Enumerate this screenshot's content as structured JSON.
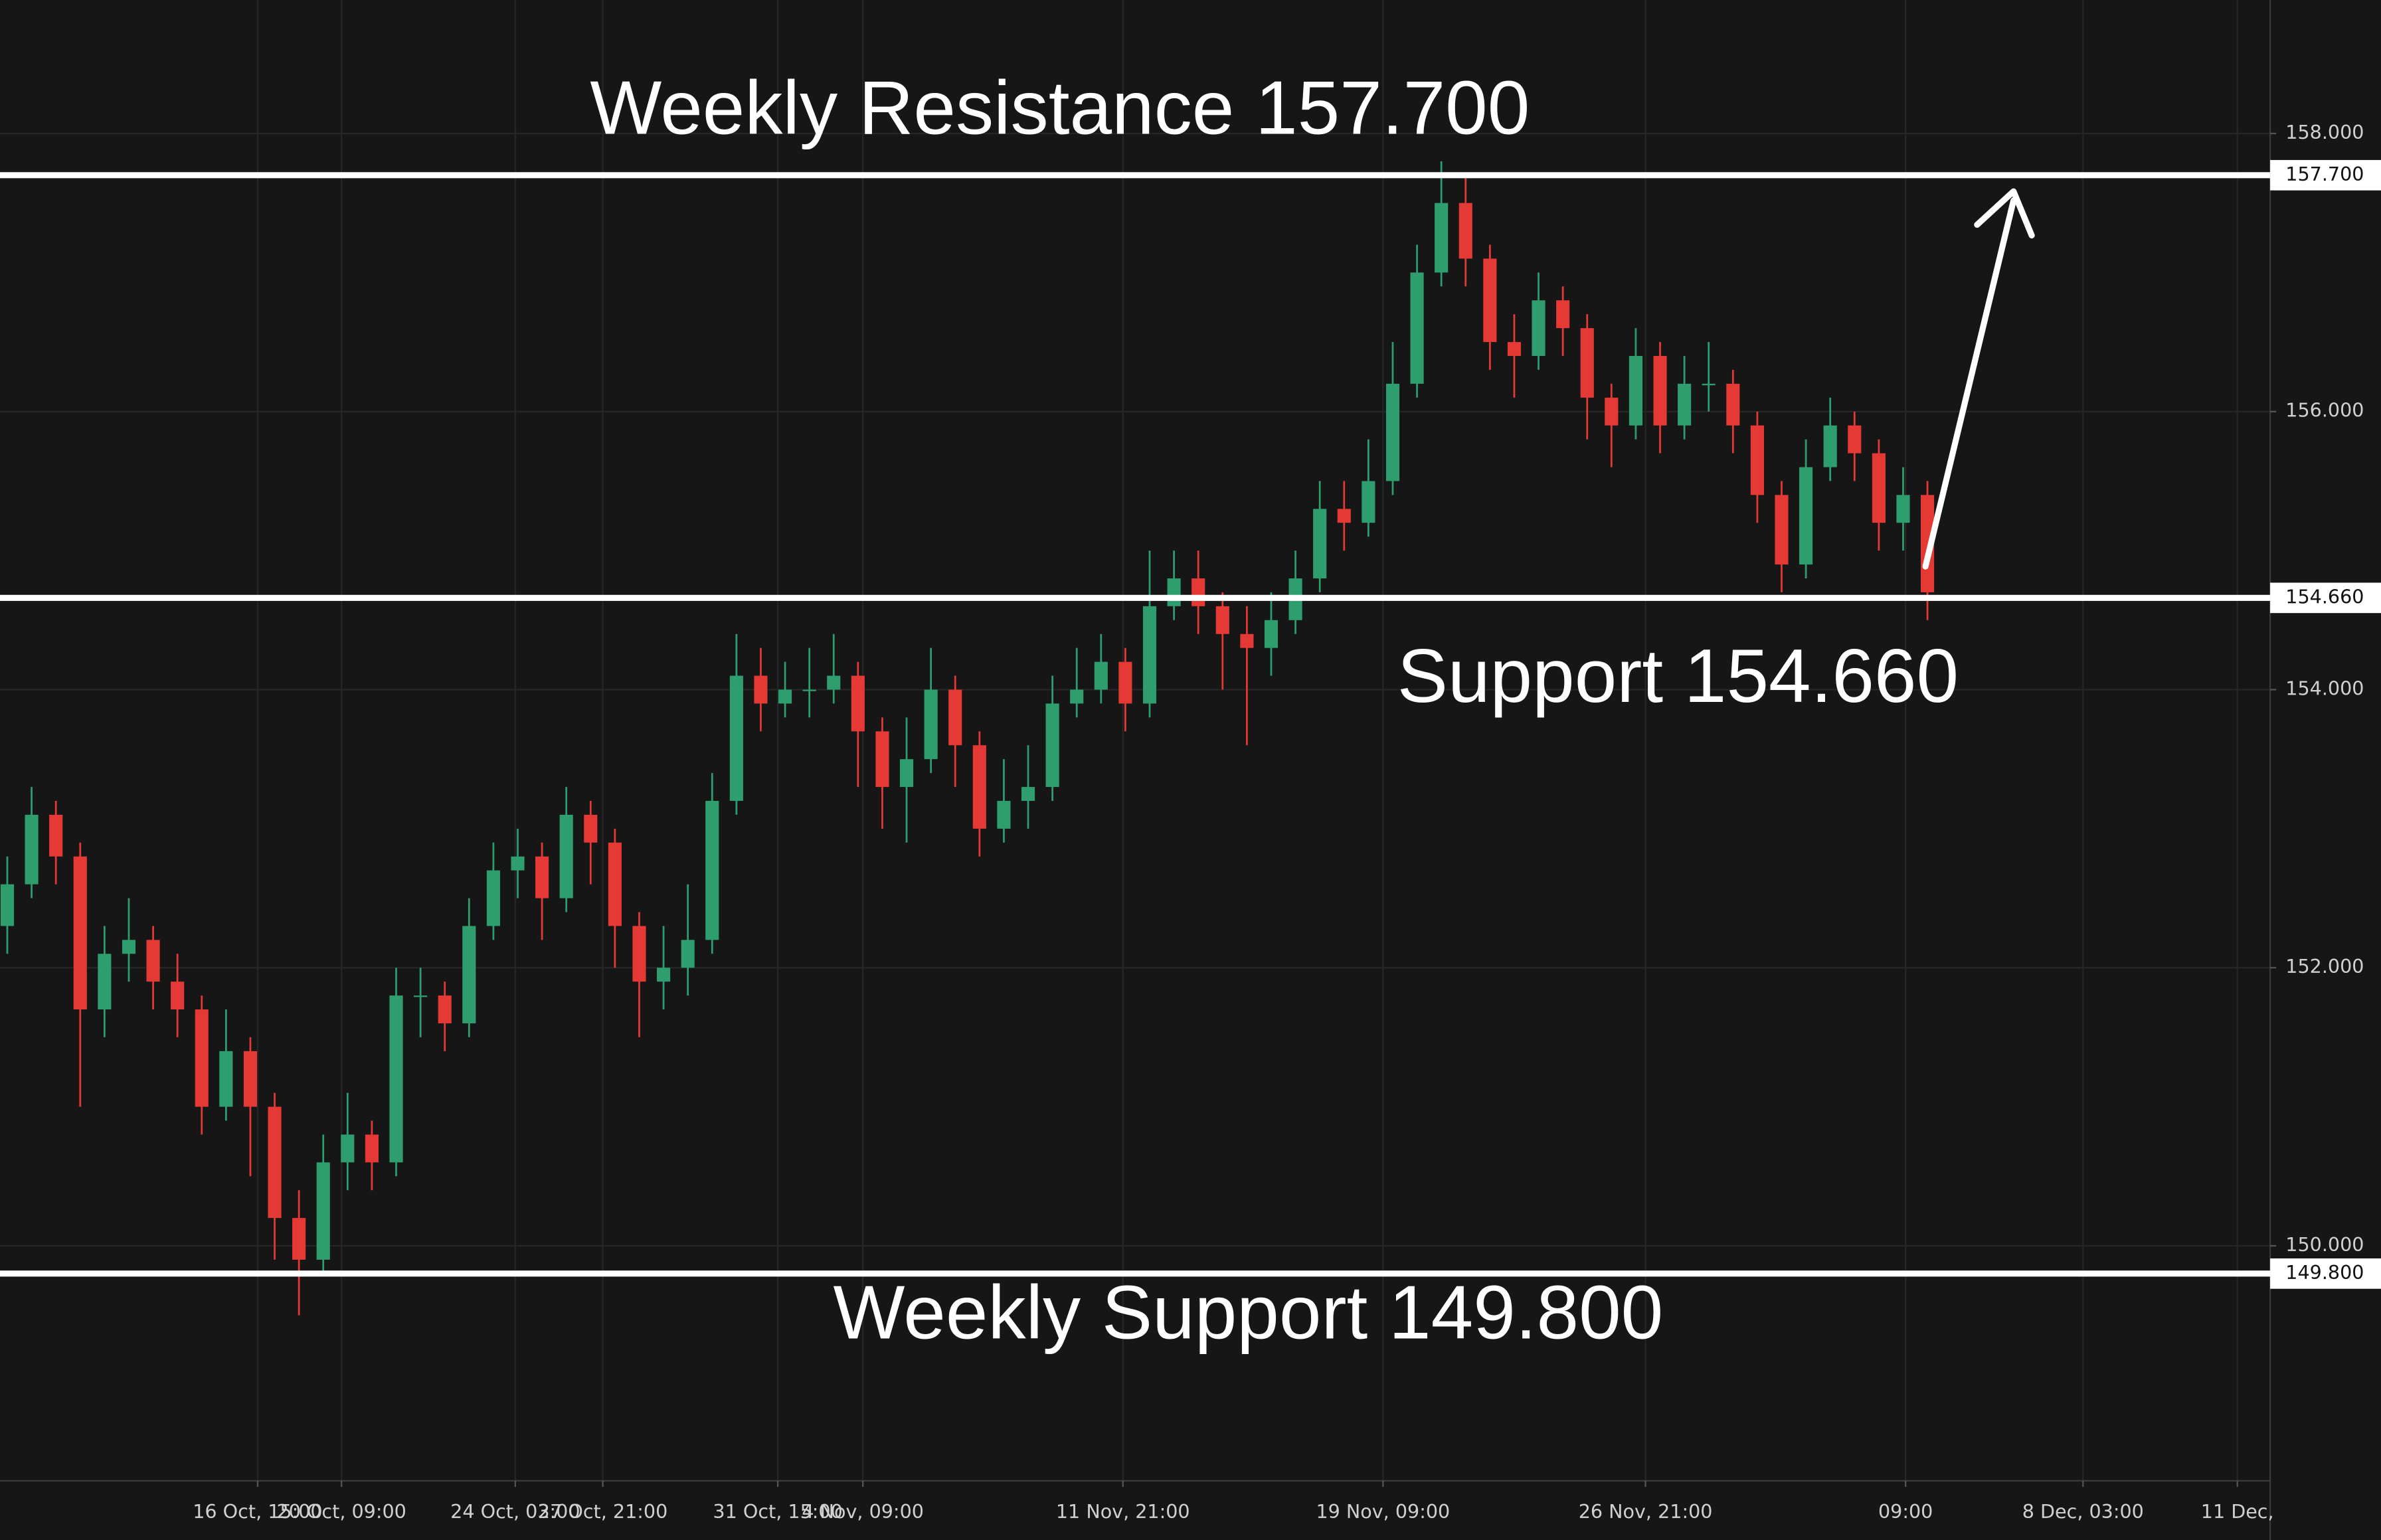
{
  "chart_data": {
    "type": "candlestick",
    "x": [
      0,
      1,
      2,
      3,
      4,
      5,
      6,
      7,
      8,
      9,
      10,
      11,
      12,
      13,
      14,
      15,
      16,
      17,
      18,
      19,
      20,
      21,
      22,
      23,
      24,
      25,
      26,
      27,
      28,
      29,
      30,
      31,
      32,
      33,
      34,
      35,
      36,
      37,
      38,
      39,
      40,
      41,
      42,
      43,
      44,
      45,
      46,
      47,
      48,
      49,
      50,
      51,
      52,
      53,
      54,
      55,
      56,
      57,
      58,
      59,
      60,
      61,
      62,
      63,
      64,
      65,
      66,
      67,
      68,
      69,
      70,
      71,
      72,
      73,
      74,
      75,
      76,
      77,
      78,
      79
    ],
    "open": [
      152.3,
      152.6,
      153.1,
      152.8,
      151.7,
      152.1,
      152.2,
      151.9,
      151.7,
      151.0,
      151.4,
      151.0,
      150.2,
      149.9,
      150.6,
      150.8,
      150.6,
      151.8,
      151.8,
      151.6,
      152.3,
      152.7,
      152.8,
      152.5,
      153.1,
      152.9,
      152.3,
      151.9,
      152.0,
      152.2,
      153.2,
      154.1,
      153.9,
      154.0,
      154.0,
      154.1,
      153.7,
      153.3,
      153.5,
      154.0,
      153.6,
      153.0,
      153.2,
      153.3,
      153.9,
      154.0,
      154.2,
      153.9,
      154.6,
      154.8,
      154.6,
      154.4,
      154.3,
      154.5,
      154.8,
      155.3,
      155.2,
      155.5,
      156.2,
      157.0,
      157.5,
      157.1,
      156.5,
      156.4,
      156.8,
      156.6,
      156.1,
      155.9,
      156.4,
      155.9,
      156.2,
      156.2,
      155.9,
      155.4,
      154.9,
      155.6,
      155.9,
      155.7,
      155.2,
      155.4
    ],
    "high": [
      152.8,
      153.3,
      153.2,
      152.9,
      152.3,
      152.5,
      152.3,
      152.1,
      151.8,
      151.7,
      151.5,
      151.1,
      150.4,
      150.8,
      151.1,
      150.9,
      152.0,
      152.0,
      151.9,
      152.5,
      152.9,
      153.0,
      152.9,
      153.3,
      153.2,
      153.0,
      152.4,
      152.3,
      152.6,
      153.4,
      154.4,
      154.3,
      154.2,
      154.3,
      154.4,
      154.2,
      153.8,
      153.8,
      154.3,
      154.1,
      153.7,
      153.5,
      153.6,
      154.1,
      154.3,
      154.4,
      154.3,
      155.0,
      155.0,
      155.0,
      154.7,
      154.6,
      154.7,
      155.0,
      155.5,
      155.5,
      155.8,
      156.5,
      157.2,
      157.8,
      157.7,
      157.2,
      156.7,
      157.0,
      156.9,
      156.7,
      156.2,
      156.6,
      156.5,
      156.4,
      156.5,
      156.3,
      156.0,
      155.5,
      155.8,
      156.1,
      156.0,
      155.8,
      155.6,
      155.5
    ],
    "low": [
      152.1,
      152.5,
      152.6,
      151.0,
      151.5,
      151.9,
      151.7,
      151.5,
      150.8,
      150.9,
      150.5,
      149.9,
      149.5,
      149.8,
      150.4,
      150.4,
      150.5,
      151.5,
      151.4,
      151.5,
      152.2,
      152.5,
      152.2,
      152.4,
      152.6,
      152.0,
      151.5,
      151.7,
      151.8,
      152.1,
      153.1,
      153.7,
      153.8,
      153.8,
      153.9,
      153.3,
      153.0,
      152.9,
      153.4,
      153.3,
      152.8,
      152.9,
      153.0,
      153.2,
      153.8,
      153.9,
      153.7,
      153.8,
      154.5,
      154.4,
      154.0,
      153.6,
      154.1,
      154.4,
      154.7,
      155.0,
      155.1,
      155.4,
      156.1,
      156.9,
      156.9,
      156.3,
      156.1,
      156.3,
      156.4,
      155.8,
      155.6,
      155.8,
      155.7,
      155.8,
      156.0,
      155.7,
      155.2,
      154.7,
      154.8,
      155.5,
      155.5,
      155.0,
      155.0,
      154.5
    ],
    "close": [
      152.6,
      153.1,
      152.8,
      151.7,
      152.1,
      152.2,
      151.9,
      151.7,
      151.0,
      151.4,
      151.0,
      150.2,
      149.9,
      150.6,
      150.8,
      150.6,
      151.8,
      151.8,
      151.6,
      152.3,
      152.7,
      152.8,
      152.5,
      153.1,
      152.9,
      152.3,
      151.9,
      152.0,
      152.2,
      153.2,
      154.1,
      153.9,
      154.0,
      154.0,
      154.1,
      153.7,
      153.3,
      153.5,
      154.0,
      153.6,
      153.0,
      153.2,
      153.3,
      153.9,
      154.0,
      154.2,
      153.9,
      154.6,
      154.8,
      154.6,
      154.4,
      154.3,
      154.5,
      154.8,
      155.3,
      155.2,
      155.5,
      156.2,
      157.0,
      157.5,
      157.1,
      156.5,
      156.4,
      156.8,
      156.6,
      156.1,
      155.9,
      156.4,
      155.9,
      156.2,
      156.2,
      155.9,
      155.4,
      154.9,
      155.6,
      155.9,
      155.7,
      155.2,
      155.4,
      154.7
    ],
    "up_color": "#2e9e6e",
    "down_color": "#e53935",
    "xlim": [
      -0.3,
      93.1
    ],
    "xticks": [
      {
        "value": 10.3,
        "label": "16 Oct, 15:00"
      },
      {
        "value": 13.75,
        "label": "20 Oct, 09:00"
      },
      {
        "value": 20.9,
        "label": "24 Oct, 03:00"
      },
      {
        "value": 24.5,
        "label": "27 Oct, 21:00"
      },
      {
        "value": 31.7,
        "label": "31 Oct, 15:00"
      },
      {
        "value": 35.2,
        "label": "4 Nov, 09:00"
      },
      {
        "value": 45.9,
        "label": "11 Nov, 21:00"
      },
      {
        "value": 56.6,
        "label": "19 Nov, 09:00"
      },
      {
        "value": 67.4,
        "label": "26 Nov, 21:00"
      },
      {
        "value": 78.1,
        "label": "09:00"
      },
      {
        "value": 85.4,
        "label": "8 Dec, 03:00"
      },
      {
        "value": 91.75,
        "label": "11 Dec,"
      }
    ],
    "ylim": [
      148.31,
      158.96
    ],
    "yticks": [
      {
        "value": 150,
        "label": "150.000"
      },
      {
        "value": 152,
        "label": "152.000"
      },
      {
        "value": 154,
        "label": "154.000"
      },
      {
        "value": 156,
        "label": "156.000"
      },
      {
        "value": 158,
        "label": "158.000"
      }
    ],
    "grid": true,
    "levels": [
      {
        "value": 157.7,
        "label": "157.700",
        "annotation": "Weekly Resistance 157.700"
      },
      {
        "value": 154.66,
        "label": "154.660",
        "annotation": "Support 154.660"
      },
      {
        "value": 149.8,
        "label": "149.800",
        "annotation": "Weekly Support 149.800"
      }
    ]
  }
}
